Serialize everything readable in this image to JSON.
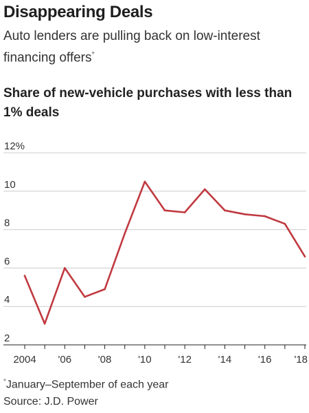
{
  "header": {
    "title": "Disappearing Deals",
    "subtitle": "Auto lenders are pulling back on low-interest financing offers",
    "subtitle_mark": "*"
  },
  "chart_data": {
    "type": "line",
    "title": "Share of new-vehicle purchases with less than 1% deals",
    "xlabel": "",
    "ylabel": "",
    "x": [
      2004,
      2005,
      2006,
      2007,
      2008,
      2009,
      2010,
      2011,
      2012,
      2013,
      2014,
      2015,
      2016,
      2017,
      2018
    ],
    "series": [
      {
        "values": [
          5.6,
          3.1,
          6.0,
          4.5,
          4.9,
          7.8,
          10.5,
          9.0,
          8.9,
          10.1,
          9.0,
          8.8,
          8.7,
          8.3,
          6.6
        ],
        "color": "#c0393f"
      }
    ],
    "ylim": [
      2,
      12
    ],
    "xlim": [
      2004,
      2018
    ],
    "y_ticks": [
      {
        "value": 12,
        "label": "12%"
      },
      {
        "value": 10,
        "label": "10"
      },
      {
        "value": 8,
        "label": "8"
      },
      {
        "value": 6,
        "label": "6"
      },
      {
        "value": 4,
        "label": "4"
      },
      {
        "value": 2,
        "label": "2"
      }
    ],
    "x_ticks": [
      {
        "value": 2004,
        "label": "2004"
      },
      {
        "value": 2006,
        "label": "'06"
      },
      {
        "value": 2008,
        "label": "'08"
      },
      {
        "value": 2010,
        "label": "'10"
      },
      {
        "value": 2012,
        "label": "'12"
      },
      {
        "value": 2014,
        "label": "'14"
      },
      {
        "value": 2016,
        "label": "'16"
      },
      {
        "value": 2018,
        "label": "'18"
      }
    ],
    "grid": true,
    "colors": {
      "line": "#c0393f",
      "grid": "#cccccc",
      "axis": "#222222"
    }
  },
  "footer": {
    "footnote_mark": "*",
    "footnote": "January–September of each year",
    "source": "Source: J.D. Power"
  }
}
